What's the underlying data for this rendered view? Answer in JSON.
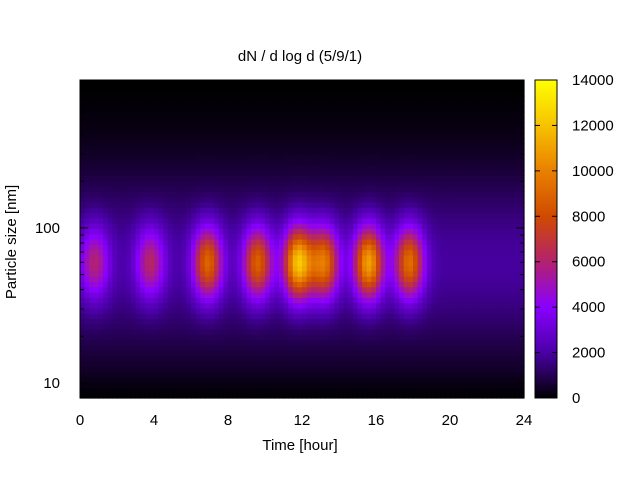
{
  "chart_data": {
    "type": "heatmap",
    "title": "dN / d log d (5/9/1)",
    "xlabel": "Time [hour]",
    "ylabel": "Particle size [nm]",
    "x_range": [
      0,
      24
    ],
    "x_ticks": [
      0,
      4,
      8,
      12,
      16,
      20,
      24
    ],
    "y_scale": "log",
    "y_range": [
      8,
      900
    ],
    "y_ticks": [
      10,
      100
    ],
    "colorbar": {
      "range": [
        0,
        14000
      ],
      "ticks": [
        0,
        2000,
        4000,
        6000,
        8000,
        10000,
        12000,
        14000
      ],
      "colormap": "gnuplot-pm3d",
      "colors": [
        "#000000",
        "#4a00a6",
        "#8a00ff",
        "#b3226e",
        "#d04a00",
        "#e98000",
        "#f7c200",
        "#ffff00"
      ]
    },
    "baseline_concentration": 1900,
    "size_mode_nm": 60,
    "events": [
      {
        "time_hour": 0.8,
        "peak": 6000
      },
      {
        "time_hour": 3.8,
        "peak": 6200
      },
      {
        "time_hour": 6.9,
        "peak": 9000
      },
      {
        "time_hour": 9.6,
        "peak": 8800
      },
      {
        "time_hour": 11.8,
        "peak": 12000
      },
      {
        "time_hour": 13.2,
        "peak": 9500
      },
      {
        "time_hour": 15.6,
        "peak": 11000
      },
      {
        "time_hour": 17.8,
        "peak": 9300
      }
    ],
    "grid": false,
    "legend": "none"
  }
}
